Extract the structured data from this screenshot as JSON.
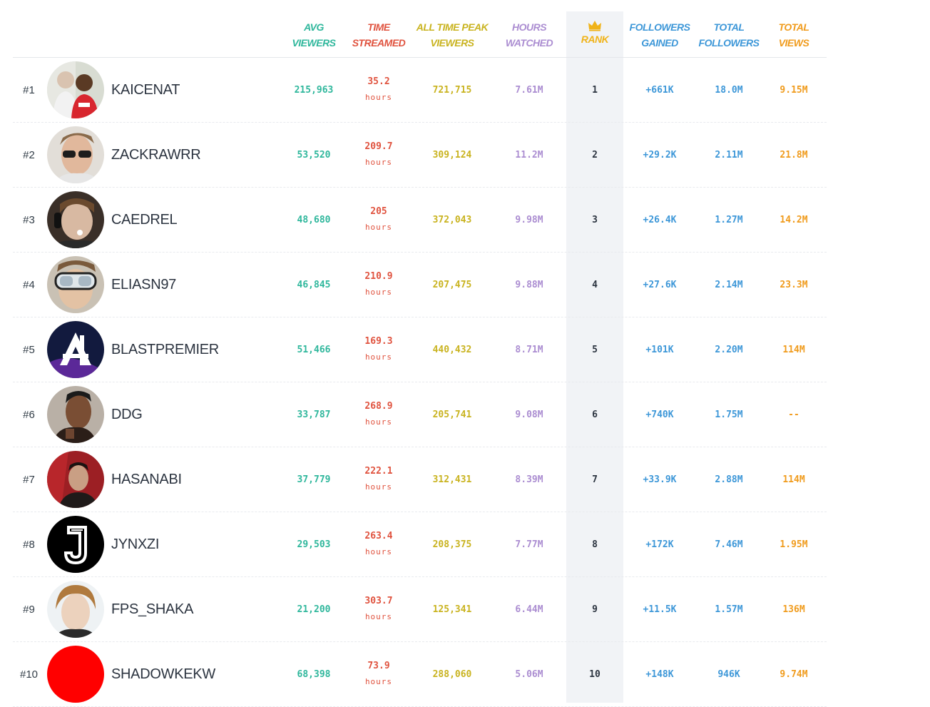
{
  "colors": {
    "avg": "#2fb79c",
    "time": "#e0533f",
    "peak": "#c9b31f",
    "hours": "#ab8dd1",
    "rank": "#f0b319",
    "blue": "#3d97d8",
    "views": "#f09b1c"
  },
  "header": {
    "avg_viewers": [
      "AVG",
      "VIEWERS"
    ],
    "time_streamed": [
      "TIME",
      "STREAMED"
    ],
    "peak_viewers": [
      "ALL TIME PEAK",
      "VIEWERS"
    ],
    "hours_watched": [
      "HOURS",
      "WATCHED"
    ],
    "rank": "RANK",
    "rank_icon": "crown-icon",
    "followers_gained": [
      "FOLLOWERS",
      "GAINED"
    ],
    "total_followers": [
      "TOTAL",
      "FOLLOWERS"
    ],
    "total_views": [
      "TOTAL",
      "VIEWS"
    ]
  },
  "rows": [
    {
      "pos": "#1",
      "name": "KAICENAT",
      "avg": "215,963",
      "time": "35.2",
      "time_unit": "hours",
      "peak": "721,715",
      "hours": "7.61M",
      "rank": "1",
      "gained": "+661K",
      "followers": "18.0M",
      "views": "9.15M"
    },
    {
      "pos": "#2",
      "name": "ZACKRAWRR",
      "avg": "53,520",
      "time": "209.7",
      "time_unit": "hours",
      "peak": "309,124",
      "hours": "11.2M",
      "rank": "2",
      "gained": "+29.2K",
      "followers": "2.11M",
      "views": "21.8M"
    },
    {
      "pos": "#3",
      "name": "CAEDREL",
      "avg": "48,680",
      "time": "205",
      "time_unit": "hours",
      "peak": "372,043",
      "hours": "9.98M",
      "rank": "3",
      "gained": "+26.4K",
      "followers": "1.27M",
      "views": "14.2M"
    },
    {
      "pos": "#4",
      "name": "ELIASN97",
      "avg": "46,845",
      "time": "210.9",
      "time_unit": "hours",
      "peak": "207,475",
      "hours": "9.88M",
      "rank": "4",
      "gained": "+27.6K",
      "followers": "2.14M",
      "views": "23.3M"
    },
    {
      "pos": "#5",
      "name": "BLASTPREMIER",
      "avg": "51,466",
      "time": "169.3",
      "time_unit": "hours",
      "peak": "440,432",
      "hours": "8.71M",
      "rank": "5",
      "gained": "+101K",
      "followers": "2.20M",
      "views": "114M"
    },
    {
      "pos": "#6",
      "name": "DDG",
      "avg": "33,787",
      "time": "268.9",
      "time_unit": "hours",
      "peak": "205,741",
      "hours": "9.08M",
      "rank": "6",
      "gained": "+740K",
      "followers": "1.75M",
      "views": "--"
    },
    {
      "pos": "#7",
      "name": "HASANABI",
      "avg": "37,779",
      "time": "222.1",
      "time_unit": "hours",
      "peak": "312,431",
      "hours": "8.39M",
      "rank": "7",
      "gained": "+33.9K",
      "followers": "2.88M",
      "views": "114M"
    },
    {
      "pos": "#8",
      "name": "JYNXZI",
      "avg": "29,503",
      "time": "263.4",
      "time_unit": "hours",
      "peak": "208,375",
      "hours": "7.77M",
      "rank": "8",
      "gained": "+172K",
      "followers": "7.46M",
      "views": "1.95M"
    },
    {
      "pos": "#9",
      "name": "FPS_SHAKA",
      "avg": "21,200",
      "time": "303.7",
      "time_unit": "hours",
      "peak": "125,341",
      "hours": "6.44M",
      "rank": "9",
      "gained": "+11.5K",
      "followers": "1.57M",
      "views": "136M"
    },
    {
      "pos": "#10",
      "name": "SHADOWKEKW",
      "avg": "68,398",
      "time": "73.9",
      "time_unit": "hours",
      "peak": "288,060",
      "hours": "5.06M",
      "rank": "10",
      "gained": "+148K",
      "followers": "946K",
      "views": "9.74M"
    }
  ]
}
